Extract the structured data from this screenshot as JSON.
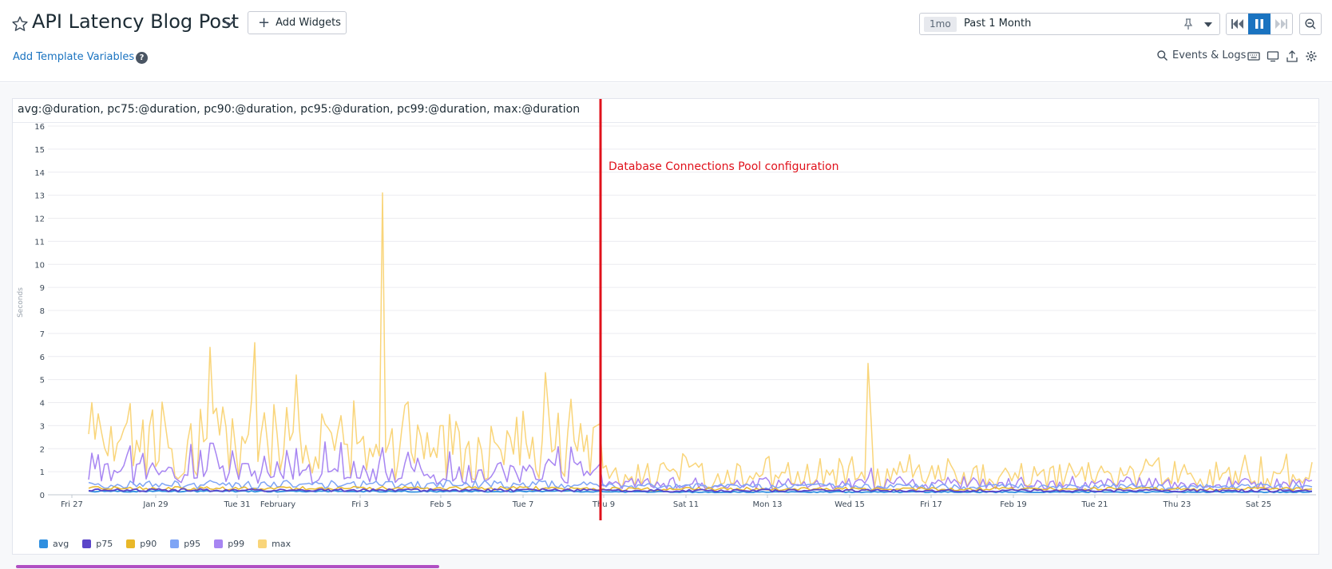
{
  "header": {
    "title": "API Latency Blog Post",
    "add_widgets": "Add Widgets",
    "template_vars": "Add Template Variables",
    "help": "?",
    "time_badge": "1mo",
    "time_label": "Past 1 Month",
    "events_logs": "Events & Logs"
  },
  "icons": [
    "star-icon",
    "chevron-down-icon",
    "plus-icon",
    "help-icon",
    "pin-icon",
    "caret-down-icon",
    "rewind-icon",
    "pause-icon",
    "fast-forward-icon",
    "zoom-out-icon",
    "search-icon",
    "keyboard-icon",
    "tv-mode-icon",
    "export-icon",
    "gear-icon"
  ],
  "colors": {
    "accent": "#1a73c0",
    "annotation": "#e0111b",
    "grid": "#ececf0"
  },
  "widget": {
    "title": "avg:@duration, pc75:@duration, pc90:@duration, pc95:@duration, pc99:@duration, max:@duration"
  },
  "chart_data": {
    "type": "line",
    "ylabel": "Seconds",
    "ylim": [
      0,
      16
    ],
    "yticks": [
      0,
      1,
      2,
      3,
      4,
      5,
      6,
      7,
      8,
      9,
      10,
      11,
      12,
      13,
      14,
      15,
      16
    ],
    "xticks": [
      "Fri 27",
      "Jan 29",
      "Tue 31",
      "February",
      "Fri 3",
      "Feb 5",
      "Tue 7",
      "Thu 9",
      "Sat 11",
      "Mon 13",
      "Wed 15",
      "Fri 17",
      "Feb 19",
      "Tue 21",
      "Thu 23",
      "Sat 25"
    ],
    "x_start": "Jan 27",
    "x_end": "Feb 26",
    "grid": true,
    "legend_position": "bottom-left",
    "annotation": {
      "label": "Database Connections Pool configuration",
      "date": "Feb 9"
    },
    "series": [
      {
        "name": "avg",
        "color": "#2f8fe0"
      },
      {
        "name": "p75",
        "color": "#5b45c9"
      },
      {
        "name": "p90",
        "color": "#e9b829"
      },
      {
        "name": "p95",
        "color": "#7fa5f5"
      },
      {
        "name": "p99",
        "color": "#a785f2"
      },
      {
        "name": "max",
        "color": "#f9d57a"
      }
    ],
    "max_series_peaks": [
      {
        "date": "Jan 28",
        "value": 4.0
      },
      {
        "date": "Jan 31",
        "value": 6.4
      },
      {
        "date": "Feb 1",
        "value": 6.6
      },
      {
        "date": "Feb 2",
        "value": 5.2
      },
      {
        "date": "Feb 4",
        "value": 13.1
      },
      {
        "date": "Feb 8",
        "value": 5.3
      },
      {
        "date": "Feb 15",
        "value": 5.7
      }
    ],
    "typical_levels_before_annotation": {
      "avg": 0.15,
      "p75": 0.2,
      "p90": 0.28,
      "p95": 0.45,
      "p99": 0.9,
      "max": 1.8
    },
    "typical_levels_after_annotation": {
      "avg": 0.12,
      "p75": 0.18,
      "p90": 0.25,
      "p95": 0.35,
      "p99": 0.5,
      "max": 0.8
    }
  }
}
